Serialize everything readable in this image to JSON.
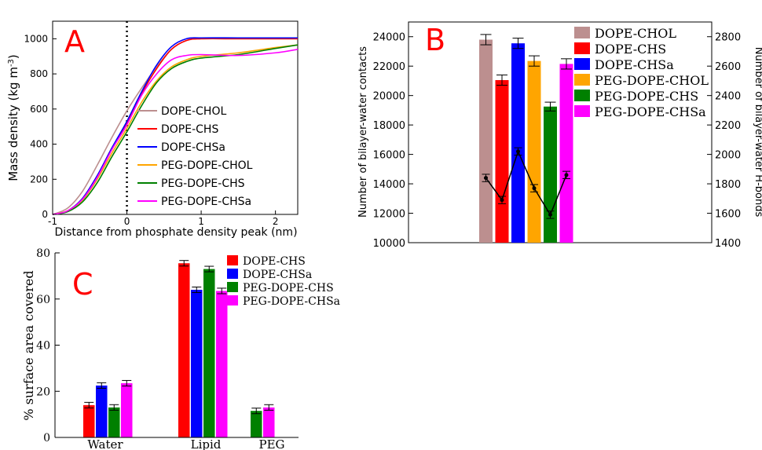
{
  "colors": {
    "dope_chol": "#bc8f8f",
    "dope_chs": "#ff0000",
    "dope_chsa": "#0000ff",
    "peg_dope_chol": "#ffa500",
    "peg_dope_chs": "#008000",
    "peg_dope_chsa": "#ff00ff",
    "panel_letter": "#ff0000",
    "hbond_line": "#000000"
  },
  "chart_data": [
    {
      "panel": "A",
      "type": "line",
      "xlabel": "Distance from phosphate density peak (nm)",
      "ylabel": "Mass density (kg m⁻³)",
      "ylabel_main": "Mass density (kg m",
      "ylabel_sup": "-3",
      "ylabel_end": ")",
      "xlim": [
        -1,
        2.3
      ],
      "ylim": [
        0,
        1100
      ],
      "xticks": [
        -1,
        0,
        1,
        2
      ],
      "yticks": [
        0,
        200,
        400,
        600,
        800,
        1000
      ],
      "vline_x": 0,
      "legend_position": "middle-right",
      "series": [
        {
          "name": "DOPE-CHOL",
          "color_key": "dope_chol",
          "x": [
            -1,
            -0.8,
            -0.6,
            -0.4,
            -0.2,
            0,
            0.2,
            0.4,
            0.6,
            0.8,
            1.0,
            1.5,
            2.0,
            2.3
          ],
          "y": [
            0,
            35,
            130,
            280,
            440,
            590,
            720,
            840,
            940,
            990,
            1000,
            1000,
            1000,
            1000
          ]
        },
        {
          "name": "DOPE-CHS",
          "color_key": "dope_chs",
          "x": [
            -1,
            -0.8,
            -0.6,
            -0.4,
            -0.2,
            0,
            0.2,
            0.4,
            0.6,
            0.8,
            1.0,
            1.5,
            2.0,
            2.3
          ],
          "y": [
            0,
            20,
            90,
            220,
            380,
            520,
            690,
            830,
            940,
            990,
            1000,
            1000,
            1000,
            1000
          ]
        },
        {
          "name": "DOPE-CHSa",
          "color_key": "dope_chsa",
          "x": [
            -1,
            -0.8,
            -0.6,
            -0.4,
            -0.2,
            0,
            0.2,
            0.4,
            0.6,
            0.8,
            1.0,
            1.5,
            2.0,
            2.3
          ],
          "y": [
            0,
            20,
            90,
            220,
            380,
            530,
            700,
            850,
            955,
            1000,
            1005,
            1005,
            1005,
            1005
          ]
        },
        {
          "name": "PEG-DOPE-CHOL",
          "color_key": "peg_dope_chol",
          "x": [
            -1,
            -0.8,
            -0.6,
            -0.4,
            -0.2,
            0,
            0.2,
            0.4,
            0.6,
            0.8,
            1.0,
            1.5,
            2.0,
            2.3
          ],
          "y": [
            0,
            20,
            80,
            200,
            350,
            490,
            640,
            760,
            840,
            880,
            900,
            920,
            950,
            965
          ]
        },
        {
          "name": "PEG-DOPE-CHS",
          "color_key": "peg_dope_chs",
          "x": [
            -1,
            -0.8,
            -0.6,
            -0.4,
            -0.2,
            0,
            0.2,
            0.4,
            0.6,
            0.8,
            1.0,
            1.5,
            2.0,
            2.3
          ],
          "y": [
            0,
            15,
            70,
            180,
            330,
            470,
            620,
            750,
            830,
            870,
            890,
            910,
            945,
            965
          ]
        },
        {
          "name": "PEG-DOPE-CHSa",
          "color_key": "peg_dope_chsa",
          "x": [
            -1,
            -0.8,
            -0.6,
            -0.4,
            -0.2,
            0,
            0.2,
            0.4,
            0.6,
            0.8,
            1.0,
            1.5,
            2.0,
            2.3
          ],
          "y": [
            0,
            20,
            85,
            210,
            370,
            510,
            680,
            800,
            880,
            905,
            910,
            905,
            920,
            940
          ]
        }
      ]
    },
    {
      "panel": "B",
      "type": "bar",
      "ylabel": "Number of bilayer-water contacts",
      "ylabel_right": "Number of bilayer-water H-bonds",
      "ylim": [
        10000,
        25000
      ],
      "yticks": [
        10000,
        12000,
        14000,
        16000,
        18000,
        20000,
        22000,
        24000
      ],
      "ylim_right": [
        1400,
        2900
      ],
      "yticks_right": [
        1400,
        1600,
        1800,
        2000,
        2200,
        2400,
        2600,
        2800
      ],
      "legend_position": "top-right",
      "series": [
        {
          "name": "DOPE-CHOL",
          "color_key": "dope_chol",
          "contacts": 23800,
          "contacts_err": 350,
          "hbonds": 1840,
          "hbonds_err": 25
        },
        {
          "name": "DOPE-CHS",
          "color_key": "dope_chs",
          "contacts": 21050,
          "contacts_err": 350,
          "hbonds": 1690,
          "hbonds_err": 25
        },
        {
          "name": "DOPE-CHSa",
          "color_key": "dope_chsa",
          "contacts": 23550,
          "contacts_err": 350,
          "hbonds": 2020,
          "hbonds_err": 25
        },
        {
          "name": "PEG-DOPE-CHOL",
          "color_key": "peg_dope_chol",
          "contacts": 22350,
          "contacts_err": 350,
          "hbonds": 1770,
          "hbonds_err": 25
        },
        {
          "name": "PEG-DOPE-CHS",
          "color_key": "peg_dope_chs",
          "contacts": 19250,
          "contacts_err": 300,
          "hbonds": 1590,
          "hbonds_err": 25
        },
        {
          "name": "PEG-DOPE-CHSa",
          "color_key": "peg_dope_chsa",
          "contacts": 22150,
          "contacts_err": 350,
          "hbonds": 1860,
          "hbonds_err": 25
        }
      ]
    },
    {
      "panel": "C",
      "type": "bar",
      "ylabel": "% surface area covered",
      "ylim": [
        0,
        80
      ],
      "yticks": [
        0,
        20,
        40,
        60,
        80
      ],
      "categories": [
        "Water",
        "Lipid",
        "PEG"
      ],
      "legend_position": "top-center",
      "series": [
        {
          "name": "DOPE-CHS",
          "color_key": "dope_chs",
          "values": [
            14,
            75.5,
            null
          ],
          "errors": [
            1.2,
            1.2,
            null
          ]
        },
        {
          "name": "DOPE-CHSa",
          "color_key": "dope_chsa",
          "values": [
            22.5,
            64,
            null
          ],
          "errors": [
            1.2,
            1.2,
            null
          ]
        },
        {
          "name": "PEG-DOPE-CHS",
          "color_key": "peg_dope_chs",
          "values": [
            13,
            73,
            11.5
          ],
          "errors": [
            1.2,
            1.2,
            1.2
          ]
        },
        {
          "name": "PEG-DOPE-CHSa",
          "color_key": "peg_dope_chsa",
          "values": [
            23.5,
            63.5,
            13
          ],
          "errors": [
            1.2,
            1.2,
            1.2
          ]
        }
      ]
    }
  ],
  "panel_labels": {
    "a": "A",
    "b": "B",
    "c": "C"
  }
}
